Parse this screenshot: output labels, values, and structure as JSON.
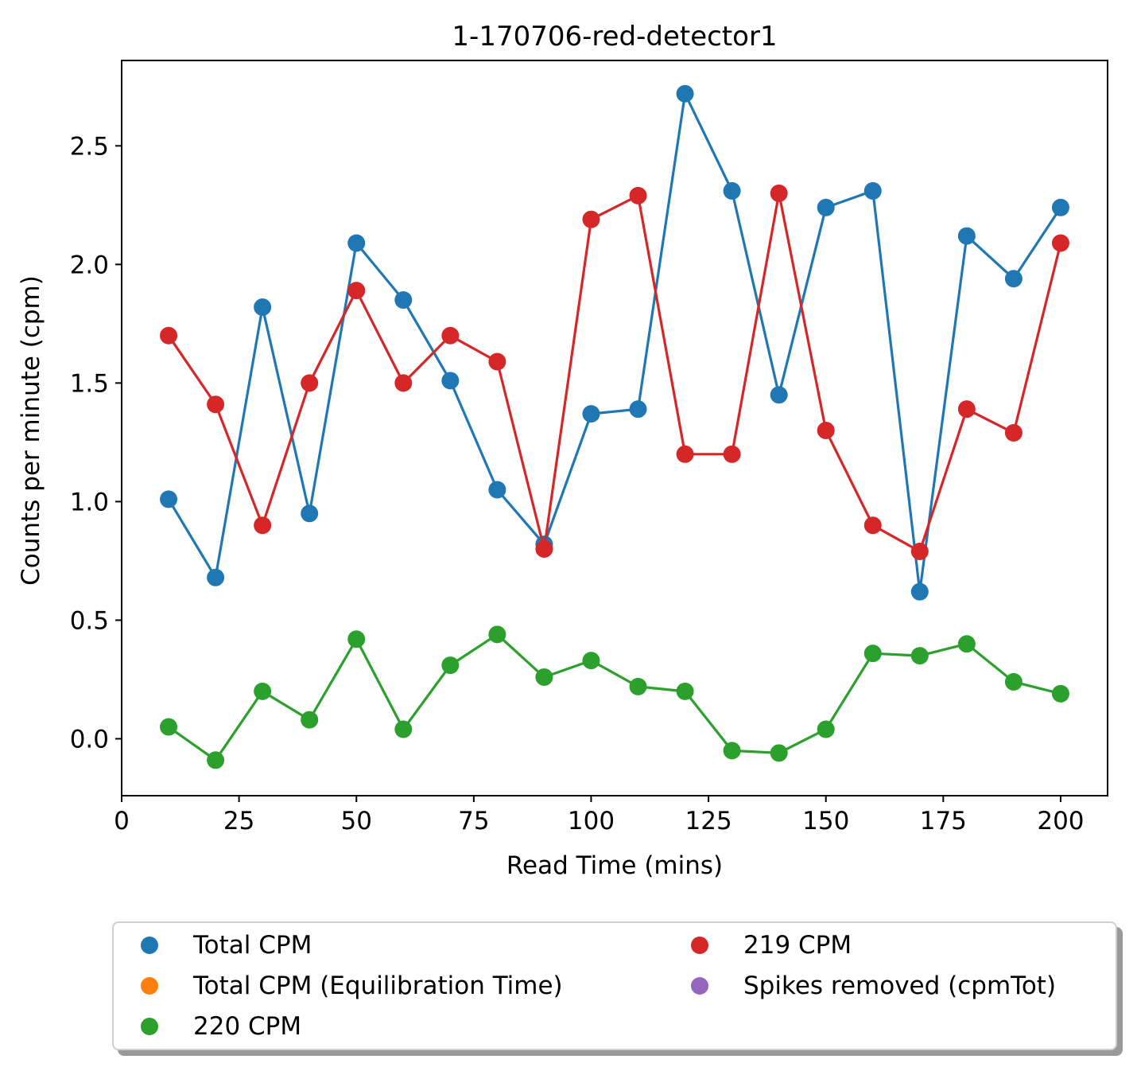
{
  "chart_data": {
    "type": "line",
    "title": "1-170706-red-detector1",
    "xlabel": "Read Time (mins)",
    "ylabel": "Counts per minute (cpm)",
    "xlim": [
      0,
      210
    ],
    "ylim": [
      -0.24,
      2.86
    ],
    "x_ticks": [
      0,
      25,
      50,
      75,
      100,
      125,
      150,
      175,
      200
    ],
    "x_tick_labels": [
      "0",
      "25",
      "50",
      "75",
      "100",
      "125",
      "150",
      "175",
      "200"
    ],
    "y_ticks": [
      0.0,
      0.5,
      1.0,
      1.5,
      2.0,
      2.5
    ],
    "y_tick_labels": [
      "0.0",
      "0.5",
      "1.0",
      "1.5",
      "2.0",
      "2.5"
    ],
    "grid": false,
    "legend_placement": "below plot",
    "x": [
      10,
      20,
      30,
      40,
      50,
      60,
      70,
      80,
      90,
      100,
      110,
      120,
      130,
      140,
      150,
      160,
      170,
      180,
      190,
      200
    ],
    "series": [
      {
        "name": "Total CPM",
        "color": "#1f77b4",
        "values": [
          1.01,
          0.68,
          1.82,
          0.95,
          2.09,
          1.85,
          1.51,
          1.05,
          0.82,
          1.37,
          1.39,
          2.72,
          2.31,
          1.45,
          2.24,
          2.31,
          0.62,
          2.12,
          1.94,
          2.24
        ]
      },
      {
        "name": "219 CPM",
        "color": "#d62728",
        "values": [
          1.7,
          1.41,
          0.9,
          1.5,
          1.89,
          1.5,
          1.7,
          1.59,
          0.8,
          2.19,
          2.29,
          1.2,
          1.2,
          2.3,
          1.3,
          0.9,
          0.79,
          1.39,
          1.29,
          2.09
        ]
      },
      {
        "name": "220 CPM",
        "color": "#2ca02c",
        "values": [
          0.05,
          -0.09,
          0.2,
          0.08,
          0.42,
          0.04,
          0.31,
          0.44,
          0.26,
          0.33,
          0.22,
          0.2,
          -0.05,
          -0.06,
          0.04,
          0.36,
          0.35,
          0.4,
          0.24,
          0.19
        ]
      }
    ],
    "legend": [
      {
        "label": "Total CPM",
        "color": "#1f77b4"
      },
      {
        "label": "Total CPM (Equilibration Time)",
        "color": "#ff7f0e"
      },
      {
        "label": "220 CPM",
        "color": "#2ca02c"
      },
      {
        "label": "219 CPM",
        "color": "#d62728"
      },
      {
        "label": "Spikes removed (cpmTot)",
        "color": "#9467bd"
      }
    ]
  }
}
